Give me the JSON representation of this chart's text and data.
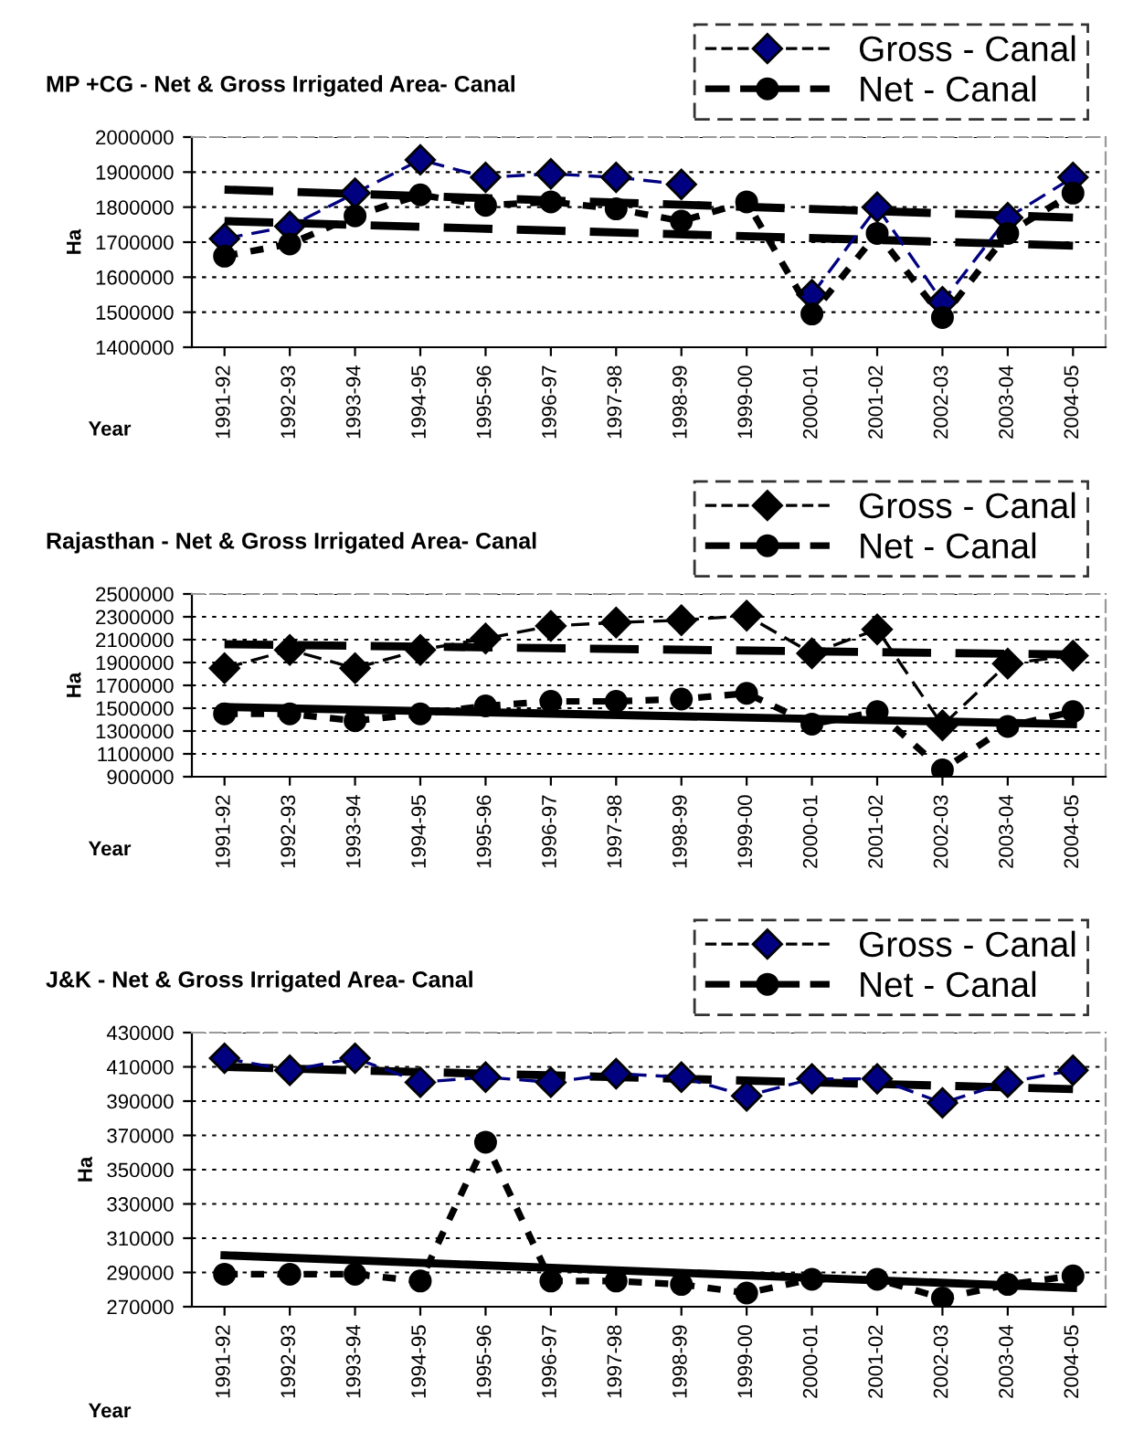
{
  "chart_data": [
    {
      "type": "line",
      "title": "MP +CG - Net & Gross Irrigated Area- Canal",
      "xlabel": "Year",
      "ylabel": "Ha",
      "categories": [
        "1991-92",
        "1992-93",
        "1993-94",
        "1994-95",
        "1995-96",
        "1996-97",
        "1997-98",
        "1998-99",
        "1999-00",
        "2000-01",
        "2001-02",
        "2002-03",
        "2003-04",
        "2004-05"
      ],
      "series": [
        {
          "name": "Gross - Canal",
          "color": "#000080",
          "marker": "diamond",
          "line_style": "dashed",
          "values": [
            1710000,
            1745000,
            1840000,
            1935000,
            1885000,
            1895000,
            1885000,
            1865000,
            null,
            1550000,
            1800000,
            1530000,
            1770000,
            1885000
          ]
        },
        {
          "name": "Net - Canal",
          "color": "#000000",
          "marker": "circle",
          "line_style": "dotted",
          "values": [
            1660000,
            1695000,
            1775000,
            1835000,
            1805000,
            1815000,
            1795000,
            1760000,
            1815000,
            1495000,
            1725000,
            1485000,
            1725000,
            1840000
          ]
        },
        {
          "type": "line",
          "color": "#000000",
          "marker": "none",
          "line_style": "dashed",
          "values": [
            1850000,
            null,
            null,
            null,
            null,
            null,
            null,
            null,
            null,
            null,
            null,
            null,
            null,
            1770000
          ]
        },
        {
          "type": "line",
          "color": "#000000",
          "marker": "none",
          "line_style": "dashed",
          "values": [
            1760000,
            null,
            null,
            null,
            null,
            null,
            null,
            null,
            null,
            null,
            null,
            null,
            null,
            1690000
          ]
        }
      ],
      "ylim": [
        1400000,
        2000000
      ],
      "yticks": [
        1400000,
        1500000,
        1600000,
        1700000,
        1800000,
        1900000,
        2000000
      ],
      "grid": "y",
      "legend": "top right"
    },
    {
      "type": "line",
      "title": "Rajasthan - Net & Gross Irrigated Area- Canal",
      "xlabel": "Year",
      "ylabel": "Ha",
      "categories": [
        "1991-92",
        "1992-93",
        "1993-94",
        "1994-95",
        "1995-96",
        "1996-97",
        "1997-98",
        "1998-99",
        "1999-00",
        "2000-01",
        "2001-02",
        "2002-03",
        "2003-04",
        "2004-05"
      ],
      "series": [
        {
          "name": "Gross - Canal",
          "color": "#000000",
          "marker": "diamond",
          "line_style": "dashed",
          "values": [
            1850000,
            2010000,
            1850000,
            2010000,
            2110000,
            2220000,
            2250000,
            2270000,
            2310000,
            1980000,
            2190000,
            1350000,
            1890000,
            1960000
          ]
        },
        {
          "name": "Net - Canal",
          "color": "#000000",
          "marker": "circle",
          "line_style": "dotted",
          "values": [
            1450000,
            1450000,
            1390000,
            1450000,
            1520000,
            1560000,
            1560000,
            1580000,
            1630000,
            1360000,
            1470000,
            960000,
            1340000,
            1470000
          ]
        },
        {
          "type": "line",
          "color": "#000000",
          "marker": "none",
          "line_style": "dashed",
          "values": [
            2060000,
            null,
            null,
            null,
            null,
            null,
            null,
            null,
            null,
            null,
            null,
            null,
            null,
            1970000
          ]
        },
        {
          "type": "line",
          "color": "#000000",
          "marker": "none",
          "line_style": "solid",
          "values": [
            1510000,
            null,
            null,
            null,
            null,
            null,
            null,
            null,
            null,
            null,
            null,
            null,
            null,
            1360000
          ]
        }
      ],
      "ylim": [
        900000,
        2500000
      ],
      "yticks": [
        900000,
        1100000,
        1300000,
        1500000,
        1700000,
        1900000,
        2100000,
        2300000,
        2500000
      ],
      "grid": "y",
      "legend": "top right"
    },
    {
      "type": "line",
      "title": "J&K - Net & Gross Irrigated Area- Canal",
      "xlabel": "Year",
      "ylabel": "Ha",
      "categories": [
        "1991-92",
        "1992-93",
        "1993-94",
        "1994-95",
        "1995-96",
        "1996-97",
        "1997-98",
        "1998-99",
        "1999-00",
        "2000-01",
        "2001-02",
        "2002-03",
        "2003-04",
        "2004-05"
      ],
      "series": [
        {
          "name": "Gross - Canal",
          "color": "#000080",
          "marker": "diamond",
          "line_style": "dashed",
          "values": [
            415000,
            408000,
            415000,
            401000,
            404000,
            401000,
            406000,
            404000,
            393000,
            403000,
            403000,
            389000,
            401000,
            408000
          ]
        },
        {
          "name": "Net - Canal",
          "color": "#000000",
          "marker": "circle",
          "line_style": "dotted",
          "values": [
            289000,
            289000,
            289000,
            285000,
            366000,
            285000,
            285000,
            283000,
            278000,
            286000,
            286000,
            275000,
            283000,
            288000
          ]
        },
        {
          "type": "line",
          "color": "#000000",
          "marker": "none",
          "line_style": "dashed",
          "values": [
            410000,
            null,
            null,
            null,
            null,
            null,
            null,
            null,
            null,
            null,
            null,
            null,
            null,
            397000
          ]
        },
        {
          "type": "line",
          "color": "#000000",
          "marker": "none",
          "line_style": "solid",
          "values": [
            300000,
            null,
            null,
            null,
            null,
            null,
            null,
            null,
            null,
            null,
            null,
            null,
            null,
            281000
          ]
        }
      ],
      "ylim": [
        270000,
        430000
      ],
      "yticks": [
        270000,
        290000,
        310000,
        330000,
        350000,
        370000,
        390000,
        410000,
        430000
      ],
      "grid": "y",
      "legend": "top right"
    }
  ]
}
